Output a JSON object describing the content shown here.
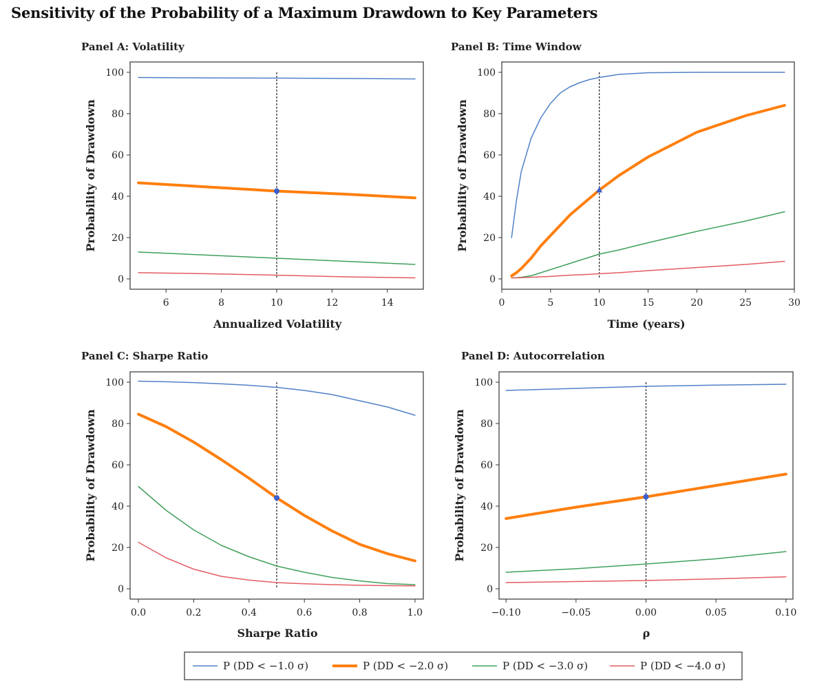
{
  "title": "Sensitivity of the Probability of a Maximum Drawdown to Key Parameters",
  "colors": {
    "s1": "#4f81c7",
    "s2": "#ff7f0e",
    "s3": "#3fa05b",
    "s4": "#e45b63",
    "marker": "#3a5fcd"
  },
  "legend": [
    {
      "label": "P (DD < −1.0 σ)",
      "color": "#4f81c7"
    },
    {
      "label": "P (DD < −2.0 σ)",
      "color": "#ff7f0e"
    },
    {
      "label": "P (DD < −3.0 σ)",
      "color": "#3fa05b"
    },
    {
      "label": "P (DD < −4.0 σ)",
      "color": "#e45b63"
    }
  ],
  "chart_data": [
    {
      "type": "line",
      "title": "Panel A: Volatility",
      "xlabel": "Annualized Volatility",
      "ylabel": "Probability of Drawdown",
      "xlim": [
        4.7,
        15.3
      ],
      "ylim": [
        -5,
        105
      ],
      "xticks": [
        6,
        8,
        10,
        12,
        14
      ],
      "xtick_labels": [
        "6",
        "8",
        "10",
        "12",
        "14"
      ],
      "yticks": [
        0,
        20,
        40,
        60,
        80,
        100
      ],
      "vline": 10,
      "marker": {
        "x": 10,
        "y": 42.5,
        "shape": "circle"
      },
      "x": [
        5,
        7.5,
        10,
        12.5,
        15
      ],
      "series": [
        {
          "name": "P (DD < −1.0 σ)",
          "values": [
            97.5,
            97.3,
            97.2,
            97.0,
            96.8
          ]
        },
        {
          "name": "P (DD < −2.0 σ)",
          "values": [
            46.5,
            44.5,
            42.5,
            41.0,
            39.2
          ]
        },
        {
          "name": "P (DD < −3.0 σ)",
          "values": [
            13.0,
            11.5,
            10.0,
            8.5,
            7.0
          ]
        },
        {
          "name": "P (DD < −4.0 σ)",
          "values": [
            3.0,
            2.5,
            1.8,
            1.0,
            0.5
          ]
        }
      ]
    },
    {
      "type": "line",
      "title": "Panel B: Time Window",
      "xlabel": "Time (years)",
      "ylabel": "Probability of Drawdown",
      "xlim": [
        0,
        30
      ],
      "ylim": [
        -5,
        105
      ],
      "xticks": [
        0,
        5,
        10,
        15,
        20,
        25,
        30
      ],
      "xtick_labels": [
        "0",
        "5",
        "10",
        "15",
        "20",
        "25",
        "30"
      ],
      "yticks": [
        0,
        20,
        40,
        60,
        80,
        100
      ],
      "vline": 10,
      "marker": {
        "x": 10,
        "y": 43,
        "shape": "triangle"
      },
      "x": [
        1,
        1.5,
        2,
        3,
        4,
        5,
        6,
        7,
        8,
        9,
        10,
        12,
        15,
        20,
        25,
        29
      ],
      "series": [
        {
          "name": "P (DD < −1.0 σ)",
          "values": [
            20,
            38,
            52,
            68,
            78,
            85,
            90,
            93,
            95,
            96.5,
            97.5,
            99,
            99.8,
            100,
            100,
            100
          ]
        },
        {
          "name": "P (DD < −2.0 σ)",
          "values": [
            1.5,
            3,
            5,
            10,
            16,
            21,
            26,
            31,
            35,
            39,
            43,
            50,
            59,
            71,
            79,
            84
          ]
        },
        {
          "name": "P (DD < −3.0 σ)",
          "values": [
            0.5,
            0.6,
            0.8,
            1.5,
            3,
            4.5,
            6,
            7.5,
            9,
            10.5,
            12,
            14,
            17.5,
            23,
            28,
            32.5
          ]
        },
        {
          "name": "P (DD < −4.0 σ)",
          "values": [
            0.5,
            0.5,
            0.6,
            0.8,
            1,
            1.2,
            1.5,
            1.8,
            2.0,
            2.2,
            2.5,
            3,
            4,
            5.5,
            7,
            8.5
          ]
        }
      ]
    },
    {
      "type": "line",
      "title": "Panel C: Sharpe Ratio",
      "xlabel": "Sharpe Ratio",
      "ylabel": "Probability of Drawdown",
      "xlim": [
        -0.03,
        1.03
      ],
      "ylim": [
        -5,
        105
      ],
      "xticks": [
        0,
        0.2,
        0.4,
        0.6,
        0.8,
        1.0
      ],
      "xtick_labels": [
        "0.0",
        "0.2",
        "0.4",
        "0.6",
        "0.8",
        "1.0"
      ],
      "yticks": [
        0,
        20,
        40,
        60,
        80,
        100
      ],
      "vline": 0.5,
      "marker": {
        "x": 0.5,
        "y": 44,
        "shape": "circle"
      },
      "x": [
        0,
        0.1,
        0.2,
        0.3,
        0.4,
        0.5,
        0.6,
        0.7,
        0.8,
        0.9,
        1.0
      ],
      "series": [
        {
          "name": "P (DD < −1.0 σ)",
          "values": [
            100.5,
            100.2,
            99.8,
            99.2,
            98.5,
            97.5,
            96,
            94,
            91,
            88,
            84
          ]
        },
        {
          "name": "P (DD < −2.0 σ)",
          "values": [
            84.5,
            78.5,
            71,
            62.5,
            53.5,
            44,
            35.5,
            28,
            21.5,
            17,
            13.5
          ]
        },
        {
          "name": "P (DD < −3.0 σ)",
          "values": [
            49.5,
            38,
            28.5,
            21,
            15.5,
            11,
            8,
            5.5,
            3.8,
            2.5,
            2
          ]
        },
        {
          "name": "P (DD < −4.0 σ)",
          "values": [
            22.5,
            15,
            9.5,
            6,
            4.2,
            3,
            2.4,
            2.0,
            1.7,
            1.5,
            1.4
          ]
        }
      ]
    },
    {
      "type": "line",
      "title": "Panel D: Autocorrelation",
      "xlabel": "ρ",
      "ylabel": "Probability of Drawdown",
      "xlim": [
        -0.105,
        0.105
      ],
      "ylim": [
        -5,
        105
      ],
      "xticks": [
        -0.1,
        -0.05,
        0,
        0.05,
        0.1
      ],
      "xtick_labels": [
        "−0.10",
        "−0.05",
        "0.00",
        "0.05",
        "0.10"
      ],
      "yticks": [
        0,
        20,
        40,
        60,
        80,
        100
      ],
      "vline": 0,
      "marker": {
        "x": 0,
        "y": 44.5,
        "shape": "circle"
      },
      "x": [
        -0.1,
        -0.05,
        0,
        0.05,
        0.1
      ],
      "series": [
        {
          "name": "P (DD < −1.0 σ)",
          "values": [
            96,
            97,
            98,
            98.6,
            99
          ]
        },
        {
          "name": "P (DD < −2.0 σ)",
          "values": [
            34,
            39.5,
            44.5,
            50,
            55.5
          ]
        },
        {
          "name": "P (DD < −3.0 σ)",
          "values": [
            8,
            9.7,
            12,
            14.5,
            18
          ]
        },
        {
          "name": "P (DD < −4.0 σ)",
          "values": [
            3,
            3.5,
            4,
            4.8,
            5.8
          ]
        }
      ]
    }
  ]
}
